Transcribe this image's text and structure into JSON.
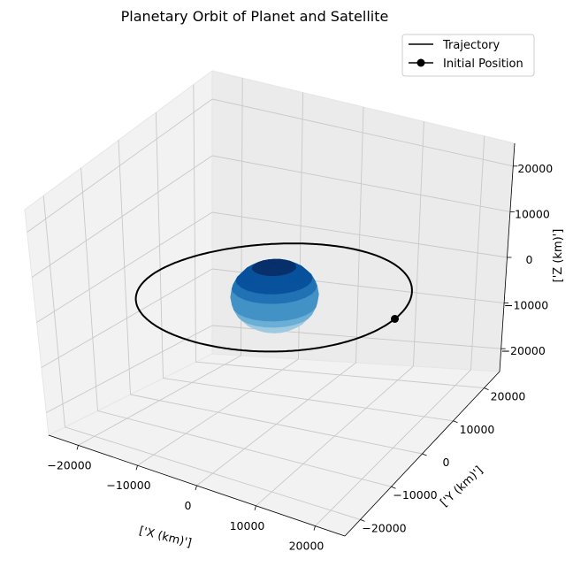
{
  "chart_data": {
    "type": "3d-line",
    "title": "Planetary Orbit of Planet and Satellite",
    "xlabel": "['X (km)']",
    "ylabel": "['Y (km)']",
    "zlabel": "['Z (km)']",
    "xlim": [
      -25000,
      25000
    ],
    "ylim": [
      -25000,
      25000
    ],
    "zlim": [
      -25000,
      25000
    ],
    "xticks": [
      -20000,
      -10000,
      0,
      10000,
      20000
    ],
    "yticks": [
      -20000,
      -10000,
      0,
      10000,
      20000
    ],
    "zticks": [
      -20000,
      -10000,
      0,
      10000,
      20000
    ],
    "xtick_labels": [
      "−20000",
      "−10000",
      "0",
      "10000",
      "20000"
    ],
    "ytick_labels": [
      "−20000",
      "−10000",
      "0",
      "10000",
      "20000"
    ],
    "ztick_labels": [
      "−20000",
      "−10000",
      "0",
      "10000",
      "20000"
    ],
    "grid": true,
    "legend_position": "top-right",
    "legend": [
      {
        "label": "Trajectory",
        "marker": "line"
      },
      {
        "label": "Initial Position",
        "marker": "line-dot"
      }
    ],
    "trajectory": {
      "name": "Trajectory",
      "color": "#000000",
      "shape": "circular orbit in the x-y plane",
      "radius_km": 20000,
      "z_km": 0
    },
    "initial_position": {
      "name": "Initial Position",
      "color": "#000000",
      "x": 20000,
      "y": 0,
      "z": 0
    },
    "planet": {
      "shape": "sphere",
      "center": [
        0,
        0,
        0
      ],
      "radius_km": 6371,
      "colormap": "Blues",
      "colors": [
        "#c6dbef",
        "#9ecae1",
        "#6baed6",
        "#4292c6",
        "#2171b5",
        "#08519c",
        "#08306b"
      ]
    }
  }
}
